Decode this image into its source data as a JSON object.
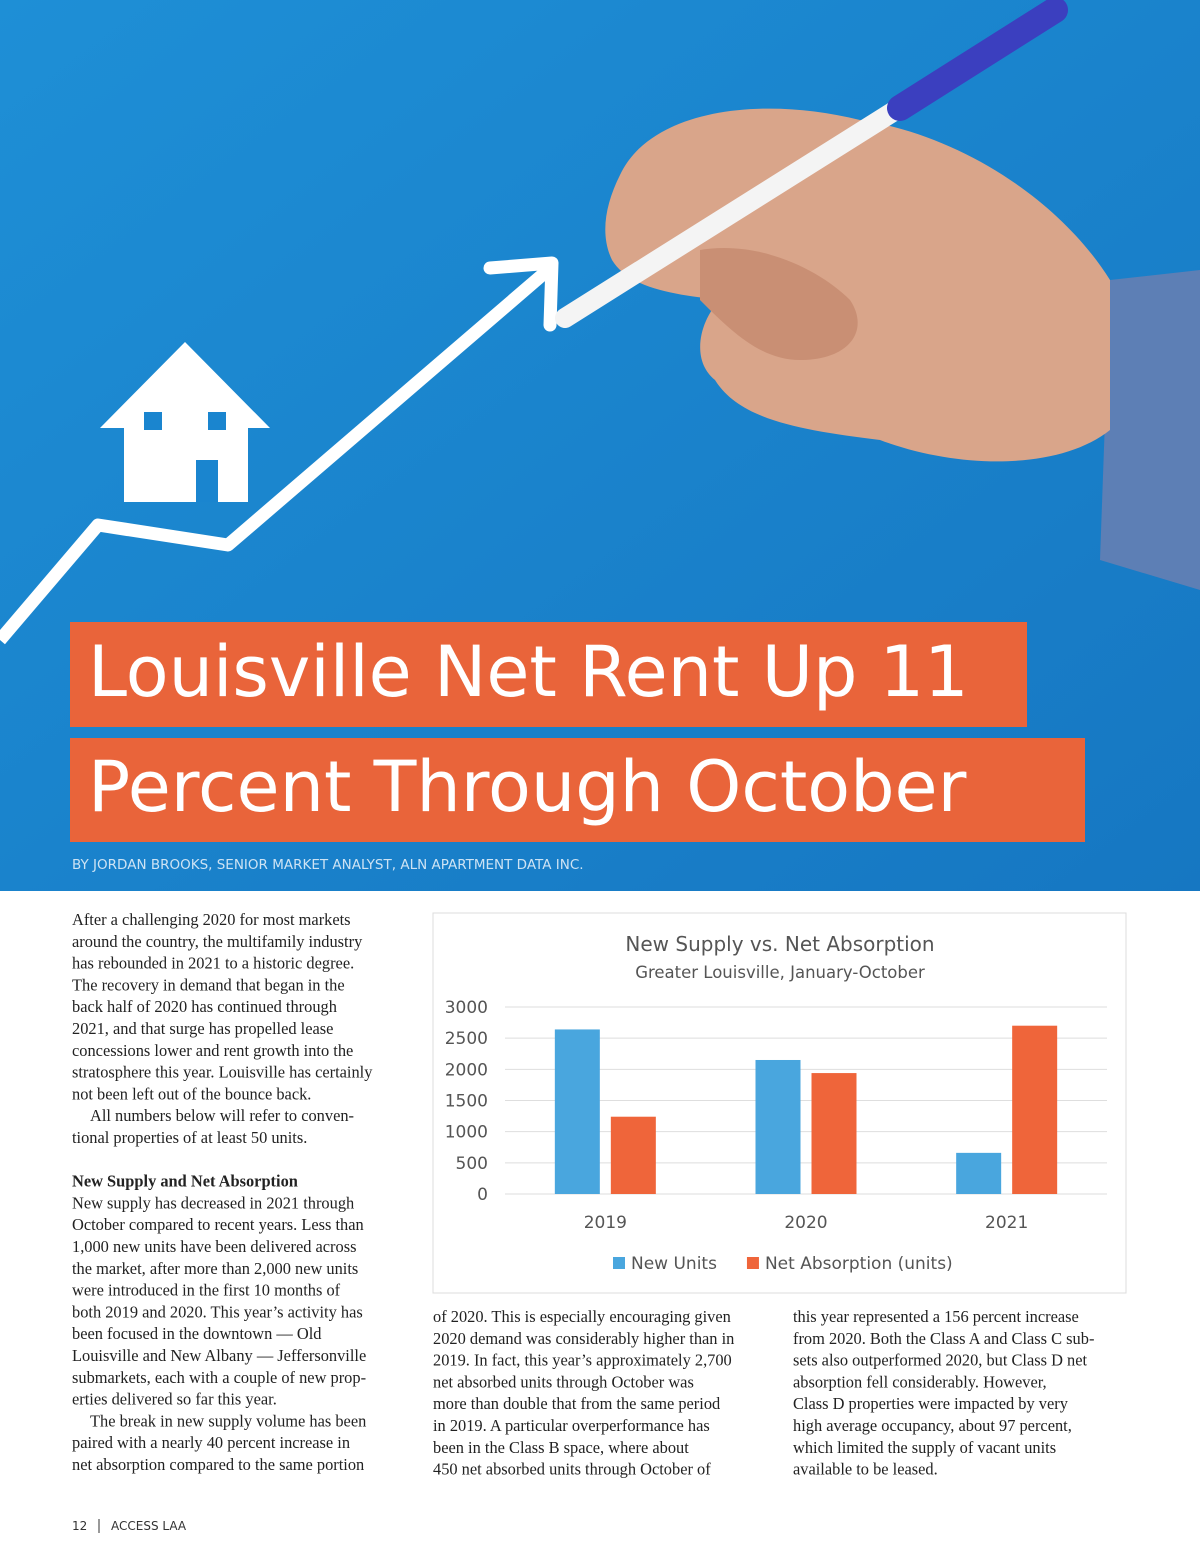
{
  "header": {
    "title_lines": [
      "Louisville Net Rent Up 11",
      "Percent Through October"
    ],
    "byline": "BY JORDAN BROOKS, SENIOR MARKET ANALYST, ALN APARTMENT DATA INC."
  },
  "columns": [
    {
      "paragraphs": [
        {
          "lines": [
            "After a challenging 2020 for most markets",
            "around the country, the multifamily industry",
            "has rebounded in 2021 to a historic degree.",
            "The recovery in demand that began in the",
            "back half of 2020 has continued through",
            "2021, and that surge has propelled lease",
            "concessions lower and rent growth into the",
            "stratosphere this year. Louisville has certainly",
            "not been left out of the bounce back."
          ]
        },
        {
          "lines": [
            "All numbers below will refer to conven-",
            "tional properties of at least 50 units."
          ]
        },
        {
          "heading": "New Supply and Net Absorption",
          "lines": [
            "New supply has decreased in 2021 through",
            "October compared to recent years. Less than",
            "1,000 new units have been delivered across",
            "the market, after more than 2,000 new units",
            "were introduced in the first 10 months of",
            "both 2019 and 2020. This year’s activity has",
            "been focused in the downtown — Old",
            "Louisville and New Albany — Jeffersonville",
            "submarkets, each with a couple of new prop-",
            "erties delivered so far this year."
          ]
        },
        {
          "lines": [
            "The break in new supply volume has been",
            "paired with a nearly 40 percent increase in",
            "net absorption compared to the same portion"
          ]
        }
      ]
    },
    {
      "paragraphs": [
        {
          "lines": [
            "of 2020. This is especially encouraging given",
            "2020 demand was considerably higher than in",
            "2019. In fact, this year’s approximately 2,700",
            "net absorbed units through October was",
            "more than double that from the same period",
            "in 2019. A particular overperformance has",
            "been in the Class B space, where about",
            "450 net absorbed units through October of"
          ]
        }
      ]
    },
    {
      "paragraphs": [
        {
          "lines": [
            "this year represented a 156 percent increase",
            "from 2020. Both the Class A and Class C sub-",
            "sets also outperformed 2020, but Class D net",
            "absorption fell considerably. However,",
            "Class D properties were impacted by very",
            "high average occupancy, about 97 percent,",
            "which limited the supply of vacant units",
            "available to be leased."
          ]
        }
      ]
    }
  ],
  "chart_data": {
    "type": "bar",
    "title": "New Supply vs. Net Absorption",
    "subtitle": "Greater Louisville, January-October",
    "categories": [
      "2019",
      "2020",
      "2021"
    ],
    "series": [
      {
        "name": "New Units",
        "color": "#49a6de",
        "values": [
          2640,
          2150,
          660
        ]
      },
      {
        "name": "Net Absorption (units)",
        "color": "#ef653a",
        "values": [
          1240,
          1940,
          2700
        ]
      }
    ],
    "ylim": [
      0,
      3000
    ],
    "yticks": [
      0,
      500,
      1000,
      1500,
      2000,
      2500,
      3000
    ],
    "grid": true,
    "legend": "bottom"
  },
  "footer": {
    "page": "12",
    "publication": "ACCESS LAA"
  }
}
